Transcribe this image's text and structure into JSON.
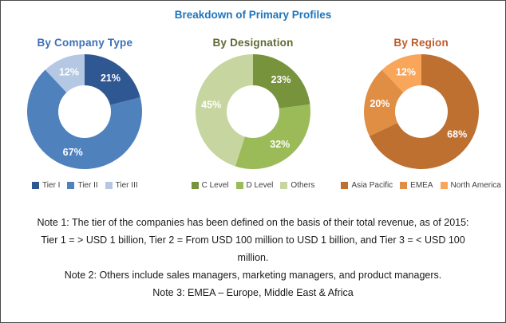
{
  "page": {
    "title": "Breakdown of Primary Profiles"
  },
  "colors": {
    "page_title_accent": "#1F75BC",
    "frame_border": "#4a4a4a"
  },
  "chart_data": [
    {
      "type": "pie",
      "donut": true,
      "title": "By Company Type",
      "title_color": "#3C71B8",
      "labels": [
        "Tier I",
        "Tier II",
        "Tier III"
      ],
      "values": [
        21,
        67,
        12
      ],
      "value_labels": [
        "21%",
        "67%",
        "12%"
      ],
      "colors": [
        "#2F5792",
        "#4F81BD",
        "#B5C8E3"
      ],
      "unit": "%",
      "legend_position": "bottom",
      "start_angle_deg": 0,
      "direction": "clockwise"
    },
    {
      "type": "pie",
      "donut": true,
      "title": "By Designation",
      "title_color": "#5E6B33",
      "labels": [
        "C Level",
        "D Level",
        "Others"
      ],
      "values": [
        23,
        32,
        45
      ],
      "value_labels": [
        "23%",
        "32%",
        "45%"
      ],
      "colors": [
        "#77933C",
        "#9BBB59",
        "#C7D6A0"
      ],
      "unit": "%",
      "legend_position": "bottom",
      "start_angle_deg": 0,
      "direction": "clockwise"
    },
    {
      "type": "pie",
      "donut": true,
      "title": "By Region",
      "title_color": "#BE5C2B",
      "labels": [
        "Asia Pacific",
        "EMEA",
        "North America"
      ],
      "values": [
        68,
        20,
        12
      ],
      "value_labels": [
        "68%",
        "20%",
        "12%"
      ],
      "colors": [
        "#BE7031",
        "#E08E44",
        "#F9A65B"
      ],
      "unit": "%",
      "legend_position": "bottom",
      "start_angle_deg": 0,
      "direction": "clockwise"
    }
  ],
  "notes": {
    "lines": [
      "Note 1: The tier of the companies has been defined on the basis of their total revenue, as of 2015:",
      "Tier 1 = > USD 1 billion, Tier 2 = From USD 100 million to USD 1 billion, and Tier 3 = < USD 100",
      "million.",
      "Note 2: Others include sales managers, marketing managers, and product managers.",
      "Note 3: EMEA – Europe, Middle East & Africa"
    ]
  }
}
